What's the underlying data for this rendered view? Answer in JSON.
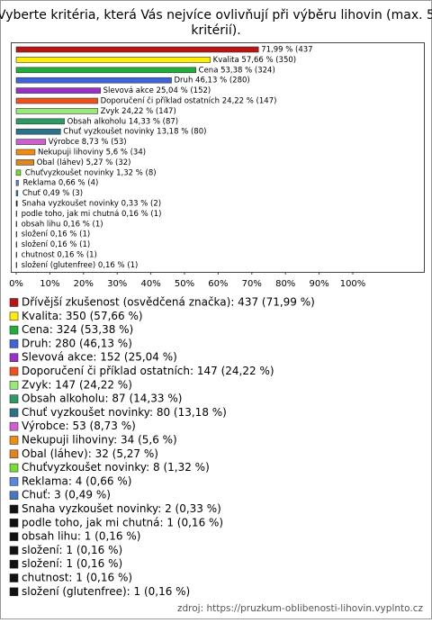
{
  "chart_data": {
    "type": "barh",
    "title": [
      "Vyberte kritéria, která Vás nejvíce ovlivňují při výběru lihovin (max. 5",
      "kritérií)."
    ],
    "values": [
      71.99,
      57.66,
      53.38,
      46.13,
      25.04,
      24.22,
      24.22,
      14.33,
      13.18,
      8.73,
      5.6,
      5.27,
      1.32,
      0.66,
      0.49,
      0.33,
      0.16,
      0.16,
      0.16,
      0.16,
      0.16,
      0.16
    ],
    "bar_labels": [
      "71,99 % (437",
      "Kvalita 57,66 % (350)",
      "Cena 53,38 % (324)",
      "Druh 46,13 % (280)",
      "Slevová akce 25,04 % (152)",
      "Doporučení či příklad ostatních 24,22 % (147)",
      "Zvyk 24,22 % (147)",
      "Obsah alkoholu 14,33 % (87)",
      "Chuť vyzkoušet novinky 13,18 % (80)",
      "Výrobce 8,73 % (53)",
      "Nekupuji lihoviny 5,6 % (34)",
      "Obal (láhev) 5,27 % (32)",
      "Chuťvyzkoušet novinky 1,32 % (8)",
      "Reklama 0,66 % (4)",
      "Chuť 0,49 % (3)",
      "Snaha vyzkoušet novinky 0,33 % (2)",
      "podle toho, jak mi chutná 0,16 % (1)",
      "obsah lihu 0,16 % (1)",
      "složení 0,16 % (1)",
      "složení 0,16 % (1)",
      "chutnost 0,16 % (1)",
      "složení (glutenfree) 0,16 % (1)"
    ],
    "legend_labels": [
      "Dřívější zkušenost (osvědčená značka): 437 (71,99 %)",
      "Kvalita: 350 (57,66 %)",
      "Cena: 324 (53,38 %)",
      "Druh: 280 (46,13 %)",
      "Slevová akce: 152 (25,04 %)",
      "Doporučení či příklad ostatních: 147 (24,22 %)",
      "Zvyk: 147 (24,22 %)",
      "Obsah alkoholu: 87 (14,33 %)",
      "Chuť vyzkoušet novinky: 80 (13,18 %)",
      "Výrobce: 53 (8,73 %)",
      "Nekupuji lihoviny: 34 (5,6 %)",
      "Obal (láhev): 32 (5,27 %)",
      "Chuťvyzkoušet novinky: 8 (1,32 %)",
      "Reklama: 4 (0,66 %)",
      "Chuť: 3 (0,49 %)",
      "Snaha vyzkoušet novinky: 2 (0,33 %)",
      "podle toho, jak mi chutná: 1 (0,16 %)",
      "obsah lihu: 1 (0,16 %)",
      "složení: 1 (0,16 %)",
      "složení: 1 (0,16 %)",
      "chutnost: 1 (0,16 %)",
      "složení (glutenfree): 1 (0,16 %)"
    ],
    "colors": [
      "#b81414",
      "#ffee00",
      "#1fae3a",
      "#3d64d8",
      "#9b30c8",
      "#f0501a",
      "#9be87a",
      "#2c9a62",
      "#2a7489",
      "#cf5fd0",
      "#f08c10",
      "#e0851e",
      "#77dd33",
      "#5b83e0",
      "#4478c0",
      "#111111",
      "#111111",
      "#111111",
      "#111111",
      "#111111",
      "#111111",
      "#111111"
    ],
    "xlim": [
      0,
      100
    ],
    "xticks": [
      {
        "value": 0,
        "label": "0%"
      },
      {
        "value": 10,
        "label": "10%"
      },
      {
        "value": 20,
        "label": "20%"
      },
      {
        "value": 30,
        "label": "30%"
      },
      {
        "value": 40,
        "label": "40%"
      },
      {
        "value": 50,
        "label": "50%"
      },
      {
        "value": 60,
        "label": "60%"
      },
      {
        "value": 70,
        "label": "70%"
      },
      {
        "value": 80,
        "label": "80%"
      },
      {
        "value": 90,
        "label": "90%"
      },
      {
        "value": 100,
        "label": "100%"
      }
    ],
    "source": "zdroj: https://pruzkum-oblibenosti-lihovin.vyplnto.cz"
  }
}
